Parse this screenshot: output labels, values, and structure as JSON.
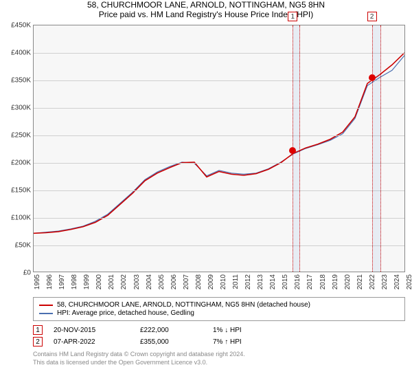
{
  "title": "58, CHURCHMOOR LANE, ARNOLD, NOTTINGHAM, NG5 8HN",
  "subtitle": "Price paid vs. HM Land Registry's House Price Index (HPI)",
  "legend": {
    "series1": "58, CHURCHMOOR LANE, ARNOLD, NOTTINGHAM, NG5 8HN (detached house)",
    "series2": "HPI: Average price, detached house, Gedling"
  },
  "chart": {
    "type": "line",
    "background_color": "#f7f7f7",
    "grid_color": "#d0d0d0",
    "border_color": "#888888",
    "series": [
      {
        "name": "property",
        "color": "#cc0000",
        "width": 1.6
      },
      {
        "name": "hpi",
        "color": "#4a6fb0",
        "width": 1.2
      }
    ],
    "yaxis": {
      "min": 0,
      "max": 450000,
      "step": 50000,
      "labels": [
        "£0",
        "£50K",
        "£100K",
        "£150K",
        "£200K",
        "£250K",
        "£300K",
        "£350K",
        "£400K",
        "£450K"
      ],
      "fontsize": 10
    },
    "xaxis": {
      "years": [
        1995,
        1996,
        1997,
        1998,
        1999,
        2000,
        2001,
        2002,
        2003,
        2004,
        2005,
        2006,
        2007,
        2008,
        2009,
        2010,
        2011,
        2012,
        2013,
        2014,
        2015,
        2016,
        2017,
        2018,
        2019,
        2020,
        2021,
        2022,
        2023,
        2024,
        2025
      ],
      "fontsize": 10
    },
    "hpi_points_k": [
      70,
      72,
      74,
      78,
      83,
      92,
      105,
      125,
      145,
      168,
      182,
      192,
      200,
      198,
      175,
      185,
      180,
      178,
      180,
      188,
      200,
      215,
      225,
      232,
      240,
      252,
      280,
      340,
      355,
      368,
      395
    ],
    "prop_points_k": [
      70,
      71,
      73,
      77,
      82,
      90,
      103,
      123,
      143,
      166,
      180,
      190,
      199,
      200,
      173,
      183,
      178,
      176,
      179,
      187,
      199,
      216,
      226,
      233,
      242,
      255,
      283,
      344,
      360,
      378,
      400
    ],
    "sale_markers": [
      {
        "id": "1",
        "year": 2015.88,
        "value_k": 222,
        "band_start": 2015.88,
        "band_end": 2016.5
      },
      {
        "id": "2",
        "year": 2022.27,
        "value_k": 355,
        "band_start": 2022.27,
        "band_end": 2023.0
      }
    ],
    "marker_box_color": "#cc0000",
    "dot_color": "#dd0000"
  },
  "sales": [
    {
      "id": "1",
      "date": "20-NOV-2015",
      "price": "£222,000",
      "delta": "1% ↓ HPI"
    },
    {
      "id": "2",
      "date": "07-APR-2022",
      "price": "£355,000",
      "delta": "7% ↑ HPI"
    }
  ],
  "footnote": {
    "line1": "Contains HM Land Registry data © Crown copyright and database right 2024.",
    "line2": "This data is licensed under the Open Government Licence v3.0."
  }
}
